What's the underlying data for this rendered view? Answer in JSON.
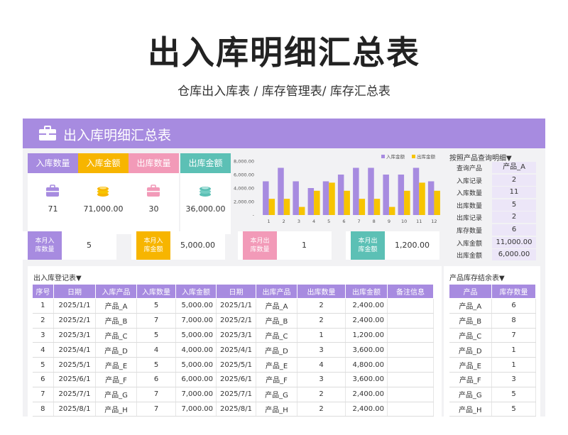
{
  "page": {
    "title": "出入库明细汇总表",
    "subtitle": "仓库出入库表 / 库存管理表/ 库存汇总表"
  },
  "sheet": {
    "banner_title": "出入库明细汇总表",
    "banner_icon": "briefcase-icon"
  },
  "stats": [
    {
      "label": "入库数量",
      "value": "71",
      "color": "#a78be0",
      "icon": "briefcase-icon"
    },
    {
      "label": "入库金额",
      "value": "71,000.00",
      "color": "#f7b500",
      "icon": "coins-icon"
    },
    {
      "label": "出库数量",
      "value": "30",
      "color": "#f29ab8",
      "icon": "briefcase-icon"
    },
    {
      "label": "出库金额",
      "value": "36,000.00",
      "color": "#5cc0b5",
      "icon": "coins-icon"
    }
  ],
  "month": [
    {
      "label_line1": "本月入",
      "label_line2": "库数量",
      "value": "5",
      "color": "#a78be0"
    },
    {
      "label_line1": "本月入",
      "label_line2": "库金额",
      "value": "5,000.00",
      "color": "#f7b500"
    },
    {
      "label_line1": "本月出",
      "label_line2": "库数量",
      "value": "1",
      "color": "#f29ab8"
    },
    {
      "label_line1": "本月出",
      "label_line2": "库金额",
      "value": "1,200.00",
      "color": "#5cc0b5"
    }
  ],
  "query": {
    "title": "按照产品查询明细▼",
    "rows": [
      {
        "label": "查询产品",
        "value": "产品_A"
      },
      {
        "label": "入库记录",
        "value": "2"
      },
      {
        "label": "入库数量",
        "value": "11"
      },
      {
        "label": "出库数量",
        "value": "5"
      },
      {
        "label": "出库记录",
        "value": "2"
      },
      {
        "label": "库存数量",
        "value": "6"
      },
      {
        "label": "入库金额",
        "value": "11,000.00"
      },
      {
        "label": "出库金额",
        "value": "6,000.00"
      }
    ]
  },
  "chart_data": {
    "type": "bar",
    "categories": [
      "1",
      "2",
      "3",
      "4",
      "5",
      "6",
      "7",
      "8",
      "9",
      "10",
      "11",
      "12"
    ],
    "series": [
      {
        "name": "入库金额",
        "color": "#a78be0",
        "values": [
          5000,
          7000,
          5000,
          4000,
          5000,
          6000,
          7000,
          7000,
          6000,
          6000,
          7000,
          5000
        ]
      },
      {
        "name": "出库金额",
        "color": "#f7c400",
        "values": [
          2400,
          2400,
          1200,
          3600,
          4800,
          3600,
          2400,
          2400,
          1200,
          3600,
          4800,
          3600
        ]
      }
    ],
    "yticks": [
      "8,000.00",
      "6,000.00",
      "4,000.00",
      "2,000.00",
      "-"
    ],
    "ylim": [
      0,
      8000
    ],
    "legend_position": "top-right"
  },
  "register": {
    "title": "出入库登记表▼",
    "columns": [
      "序号",
      "日期",
      "入库产品",
      "入库数量",
      "入库金额",
      "日期",
      "出库产品",
      "出库数量",
      "出库金额",
      "备注信息"
    ],
    "rows": [
      [
        "1",
        "2025/1/1",
        "产品_A",
        "5",
        "5,000.00",
        "2025/1/1",
        "产品_A",
        "2",
        "2,400.00",
        ""
      ],
      [
        "2",
        "2025/2/1",
        "产品_B",
        "7",
        "7,000.00",
        "2025/2/1",
        "产品_B",
        "2",
        "2,400.00",
        ""
      ],
      [
        "3",
        "2025/3/1",
        "产品_C",
        "5",
        "5,000.00",
        "2025/3/1",
        "产品_C",
        "1",
        "1,200.00",
        ""
      ],
      [
        "4",
        "2025/4/1",
        "产品_D",
        "4",
        "4,000.00",
        "2025/4/1",
        "产品_D",
        "3",
        "3,600.00",
        ""
      ],
      [
        "5",
        "2025/5/1",
        "产品_E",
        "5",
        "5,000.00",
        "2025/5/1",
        "产品_E",
        "4",
        "4,800.00",
        ""
      ],
      [
        "6",
        "2025/6/1",
        "产品_F",
        "6",
        "6,000.00",
        "2025/6/1",
        "产品_F",
        "3",
        "3,600.00",
        ""
      ],
      [
        "7",
        "2025/7/1",
        "产品_G",
        "7",
        "7,000.00",
        "2025/7/1",
        "产品_G",
        "2",
        "2,400.00",
        ""
      ],
      [
        "8",
        "2025/8/1",
        "产品_H",
        "7",
        "7,000.00",
        "2025/8/1",
        "产品_H",
        "2",
        "2,400.00",
        ""
      ]
    ]
  },
  "stock": {
    "title": "产品库存结余表▼",
    "columns": [
      "产品",
      "库存数量"
    ],
    "rows": [
      [
        "产品_A",
        "6"
      ],
      [
        "产品_B",
        "8"
      ],
      [
        "产品_C",
        "7"
      ],
      [
        "产品_D",
        "1"
      ],
      [
        "产品_E",
        "1"
      ],
      [
        "产品_F",
        "3"
      ],
      [
        "产品_G",
        "5"
      ],
      [
        "产品_H",
        "5"
      ]
    ]
  }
}
